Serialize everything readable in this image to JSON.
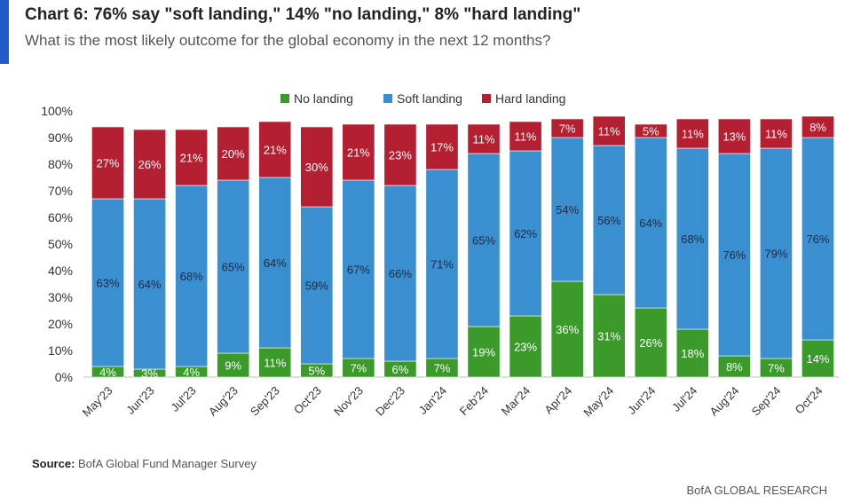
{
  "header": {
    "title": "Chart 6: 76% say \"soft landing,\" 14% \"no landing,\" 8% \"hard landing\"",
    "subtitle": "What is the most likely outcome for the global economy in the next 12 months?"
  },
  "footer": {
    "source_label": "Source:",
    "source_text": "BofA Global Fund Manager Survey",
    "brand": "BofA GLOBAL RESEARCH"
  },
  "chart_data": {
    "type": "bar",
    "stacked": true,
    "categories": [
      "May'23",
      "Jun'23",
      "Jul'23",
      "Aug'23",
      "Sep'23",
      "Oct'23",
      "Nov'23",
      "Dec'23",
      "Jan'24",
      "Feb'24",
      "Mar'24",
      "Apr'24",
      "May'24",
      "Jun'24",
      "Jul'24",
      "Aug'24",
      "Sep'24",
      "Oct'24"
    ],
    "series": [
      {
        "name": "No landing",
        "color": "#3a9a2a",
        "values": [
          4,
          3,
          4,
          9,
          11,
          5,
          7,
          6,
          7,
          19,
          23,
          36,
          31,
          26,
          18,
          8,
          7,
          14
        ]
      },
      {
        "name": "Soft landing",
        "color": "#3a8fd0",
        "values": [
          63,
          64,
          68,
          65,
          64,
          59,
          67,
          66,
          71,
          65,
          62,
          54,
          56,
          64,
          68,
          76,
          79,
          76
        ]
      },
      {
        "name": "Hard landing",
        "color": "#b51f32",
        "values": [
          27,
          26,
          21,
          20,
          21,
          30,
          21,
          23,
          17,
          11,
          11,
          7,
          11,
          5,
          11,
          13,
          11,
          8
        ]
      }
    ],
    "ylim": [
      0,
      100
    ],
    "yticks": [
      "0%",
      "10%",
      "20%",
      "30%",
      "40%",
      "50%",
      "60%",
      "70%",
      "80%",
      "90%",
      "100%"
    ],
    "legend_position": "top-center",
    "grid": false
  }
}
